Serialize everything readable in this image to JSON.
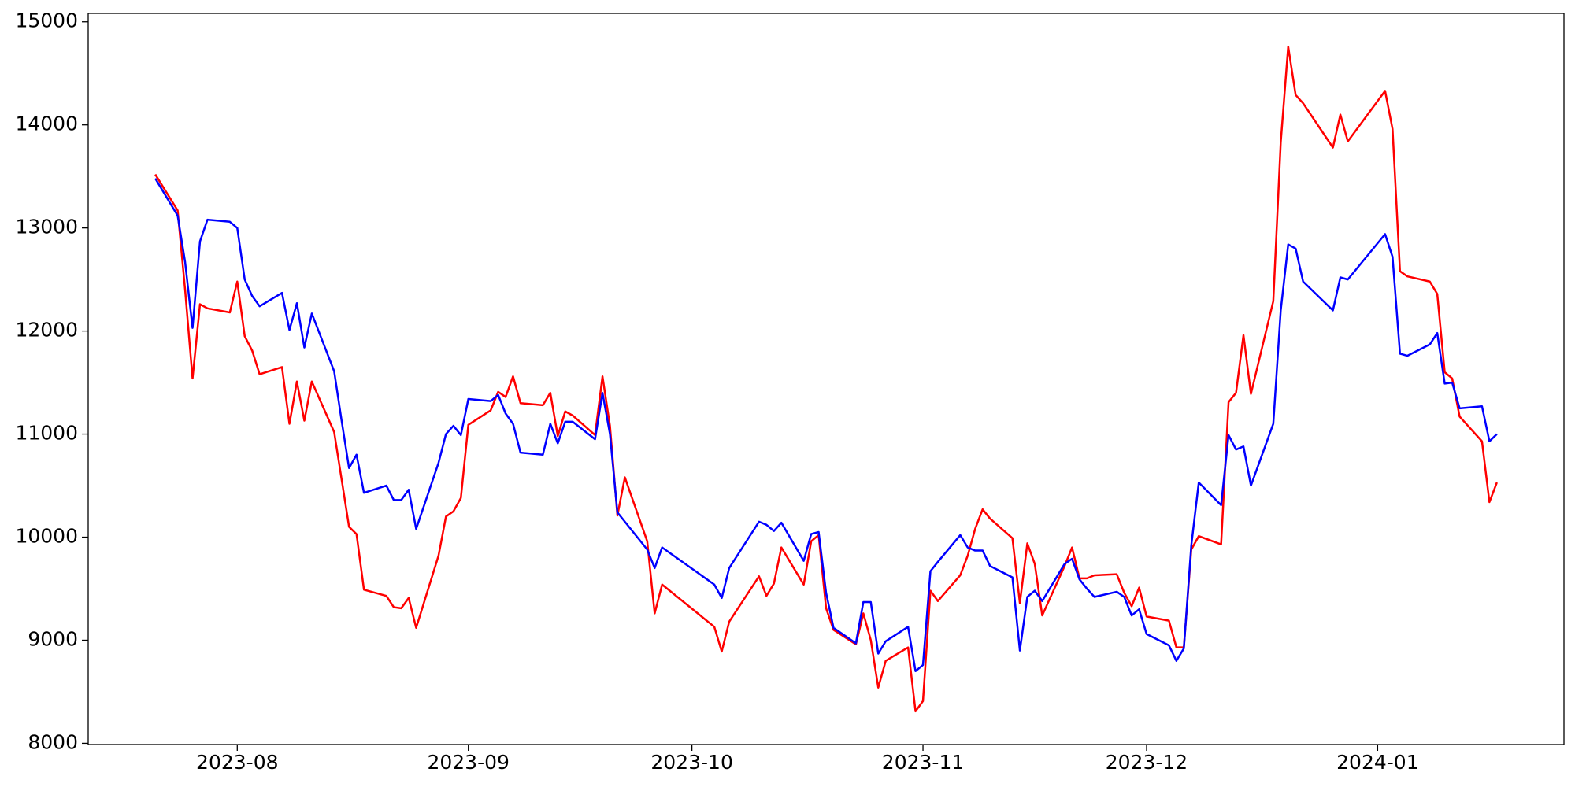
{
  "chart_data": {
    "type": "line",
    "x": [
      "2023-07-21",
      "2023-07-24",
      "2023-07-25",
      "2023-07-26",
      "2023-07-27",
      "2023-07-28",
      "2023-07-31",
      "2023-08-01",
      "2023-08-02",
      "2023-08-03",
      "2023-08-04",
      "2023-08-07",
      "2023-08-08",
      "2023-08-09",
      "2023-08-10",
      "2023-08-11",
      "2023-08-14",
      "2023-08-15",
      "2023-08-16",
      "2023-08-17",
      "2023-08-18",
      "2023-08-21",
      "2023-08-22",
      "2023-08-23",
      "2023-08-24",
      "2023-08-25",
      "2023-08-28",
      "2023-08-29",
      "2023-08-30",
      "2023-08-31",
      "2023-09-01",
      "2023-09-04",
      "2023-09-05",
      "2023-09-06",
      "2023-09-07",
      "2023-09-08",
      "2023-09-11",
      "2023-09-12",
      "2023-09-13",
      "2023-09-14",
      "2023-09-15",
      "2023-09-18",
      "2023-09-19",
      "2023-09-20",
      "2023-09-21",
      "2023-09-22",
      "2023-09-25",
      "2023-09-26",
      "2023-09-27",
      "2023-10-04",
      "2023-10-05",
      "2023-10-06",
      "2023-10-10",
      "2023-10-11",
      "2023-10-12",
      "2023-10-13",
      "2023-10-16",
      "2023-10-17",
      "2023-10-18",
      "2023-10-19",
      "2023-10-20",
      "2023-10-23",
      "2023-10-24",
      "2023-10-25",
      "2023-10-26",
      "2023-10-27",
      "2023-10-30",
      "2023-10-31",
      "2023-11-01",
      "2023-11-02",
      "2023-11-03",
      "2023-11-06",
      "2023-11-07",
      "2023-11-08",
      "2023-11-09",
      "2023-11-10",
      "2023-11-13",
      "2023-11-14",
      "2023-11-15",
      "2023-11-16",
      "2023-11-17",
      "2023-11-20",
      "2023-11-21",
      "2023-11-22",
      "2023-11-23",
      "2023-11-24",
      "2023-11-27",
      "2023-11-28",
      "2023-11-29",
      "2023-11-30",
      "2023-12-01",
      "2023-12-04",
      "2023-12-05",
      "2023-12-06",
      "2023-12-07",
      "2023-12-08",
      "2023-12-11",
      "2023-12-12",
      "2023-12-13",
      "2023-12-14",
      "2023-12-15",
      "2023-12-18",
      "2023-12-19",
      "2023-12-20",
      "2023-12-21",
      "2023-12-22",
      "2023-12-26",
      "2023-12-27",
      "2023-12-28",
      "2024-01-02",
      "2024-01-03",
      "2024-01-04",
      "2024-01-05",
      "2024-01-08",
      "2024-01-09",
      "2024-01-10",
      "2024-01-11",
      "2024-01-12",
      "2024-01-15",
      "2024-01-16",
      "2024-01-17"
    ],
    "series": [
      {
        "color": "#ff0000",
        "values": [
          13520,
          13170,
          12400,
          11540,
          12260,
          12220,
          12180,
          12480,
          11950,
          11810,
          11580,
          11650,
          11100,
          11510,
          11130,
          11510,
          11020,
          10560,
          10100,
          10030,
          9490,
          9430,
          9320,
          9310,
          9410,
          9120,
          9820,
          10200,
          10250,
          10380,
          11090,
          11230,
          11410,
          11360,
          11560,
          11300,
          11280,
          11400,
          10980,
          11220,
          11180,
          10990,
          11560,
          11080,
          10210,
          10580,
          9960,
          9260,
          9540,
          9130,
          8890,
          9180,
          9620,
          9430,
          9550,
          9900,
          9540,
          9960,
          10020,
          9310,
          9100,
          8960,
          9260,
          9000,
          8540,
          8800,
          8930,
          8310,
          8410,
          9480,
          9380,
          9630,
          9820,
          10080,
          10270,
          10180,
          9990,
          9360,
          9940,
          9740,
          9240,
          9720,
          9900,
          9600,
          9600,
          9630,
          9640,
          9460,
          9330,
          9510,
          9230,
          9190,
          8930,
          8930,
          9880,
          10010,
          9930,
          11310,
          11400,
          11960,
          11390,
          12290,
          13830,
          14760,
          14290,
          14210,
          13780,
          14100,
          13840,
          14330,
          13960,
          12580,
          12530,
          12480,
          12360,
          11600,
          11540,
          11170,
          10930,
          10340,
          10530
        ]
      },
      {
        "color": "#0000ff",
        "values": [
          13480,
          13120,
          12670,
          12030,
          12870,
          13080,
          13060,
          13000,
          12500,
          12340,
          12240,
          12370,
          12010,
          12270,
          11840,
          12170,
          11610,
          11130,
          10670,
          10800,
          10430,
          10500,
          10360,
          10360,
          10460,
          10080,
          10720,
          11000,
          11080,
          10990,
          11340,
          11320,
          11380,
          11200,
          11100,
          10820,
          10800,
          11100,
          10910,
          11120,
          11120,
          10950,
          11400,
          11000,
          10240,
          10150,
          9880,
          9700,
          9900,
          9540,
          9410,
          9700,
          10150,
          10120,
          10060,
          10140,
          9770,
          10030,
          10050,
          9460,
          9120,
          8970,
          9370,
          9370,
          8870,
          8990,
          9130,
          8700,
          8760,
          9670,
          9760,
          10020,
          9900,
          9870,
          9870,
          9720,
          9610,
          8900,
          9420,
          9480,
          9380,
          9740,
          9790,
          9590,
          9500,
          9420,
          9470,
          9420,
          9240,
          9300,
          9060,
          8950,
          8800,
          8920,
          9920,
          10530,
          10310,
          10990,
          10850,
          10880,
          10500,
          11100,
          12200,
          12840,
          12800,
          12480,
          12200,
          12520,
          12500,
          12940,
          12720,
          11780,
          11760,
          11870,
          11980,
          11490,
          11500,
          11250,
          11270,
          10930,
          11000
        ]
      }
    ],
    "xlim": [
      "2023-07-12",
      "2024-01-26"
    ],
    "xticks": [
      {
        "value": "2023-08-01",
        "label": "2023-08"
      },
      {
        "value": "2023-09-01",
        "label": "2023-09"
      },
      {
        "value": "2023-10-01",
        "label": "2023-10"
      },
      {
        "value": "2023-11-01",
        "label": "2023-11"
      },
      {
        "value": "2023-12-01",
        "label": "2023-12"
      },
      {
        "value": "2024-01-01",
        "label": "2024-01"
      }
    ],
    "ylim": [
      7988,
      15082
    ],
    "yticks": [
      8000,
      9000,
      10000,
      11000,
      12000,
      13000,
      14000,
      15000
    ],
    "grid": false
  }
}
